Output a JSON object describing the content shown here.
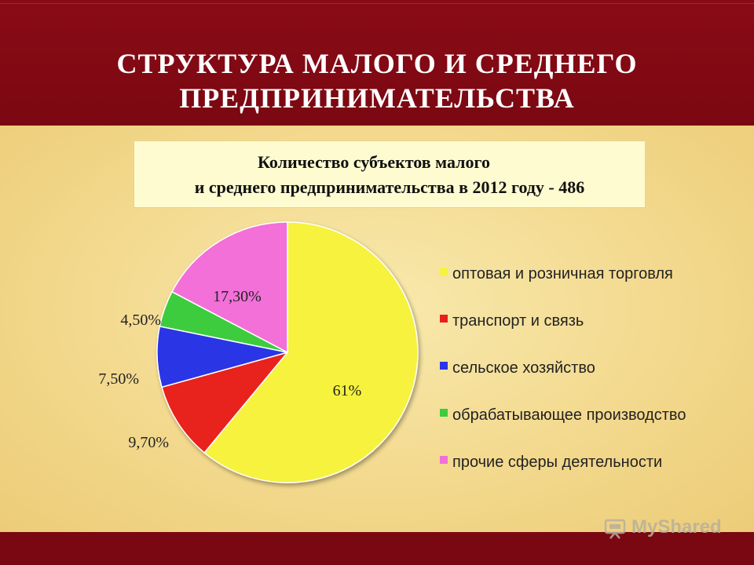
{
  "header": {
    "title_line1": "СТРУКТУРА МАЛОГО И СРЕДНЕГО",
    "title_line2": "ПРЕДПРИНИМАТЕЛЬСТВА"
  },
  "info": {
    "line1": "Количество субъектов малого",
    "line2": "и среднего предпринимательства в 2012 году - 486"
  },
  "chart_data": {
    "type": "pie",
    "legend_position": "right",
    "slices": [
      {
        "label": "оптовая и розничная торговля",
        "value": 61,
        "value_label": "61%",
        "color": "#f6f23e"
      },
      {
        "label": "транспорт и связь",
        "value": 9.7,
        "value_label": "9,70%",
        "color": "#e8201c"
      },
      {
        "label": "сельское хозяйство",
        "value": 7.5,
        "value_label": "7,50%",
        "color": "#2b34e6"
      },
      {
        "label": "обрабатывающее производство",
        "value": 4.5,
        "value_label": "4,50%",
        "color": "#3ccc3c"
      },
      {
        "label": "прочие сферы деятельности",
        "value": 17.3,
        "value_label": "17,30%",
        "color": "#f26fd8"
      }
    ]
  },
  "watermark": {
    "text": "MyShared"
  }
}
